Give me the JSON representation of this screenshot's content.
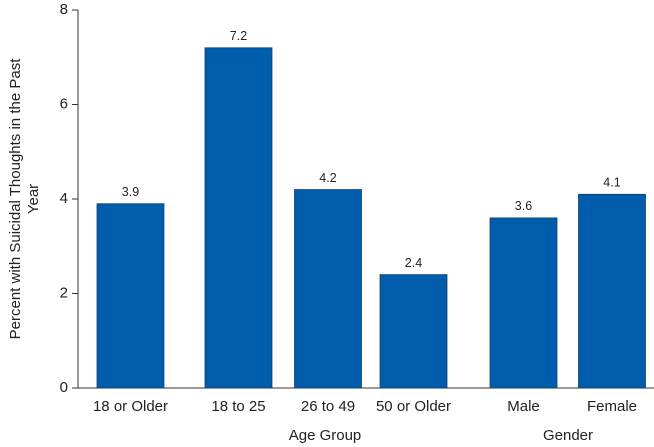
{
  "chart_data": {
    "type": "bar",
    "y_label": "Percent with Suicidal Thoughts in the Past Year",
    "categories": [
      "18 or Older",
      "18 to 25",
      "26 to 49",
      "50 or Older",
      "Male",
      "Female"
    ],
    "values": [
      3.9,
      7.2,
      4.2,
      2.4,
      3.6,
      4.1
    ],
    "group_labels": [
      "Age Group",
      "Gender"
    ],
    "color": "#005dab",
    "ylim": [
      0,
      8
    ],
    "yticks": [
      0,
      2,
      4,
      6,
      8
    ],
    "grid": false
  }
}
